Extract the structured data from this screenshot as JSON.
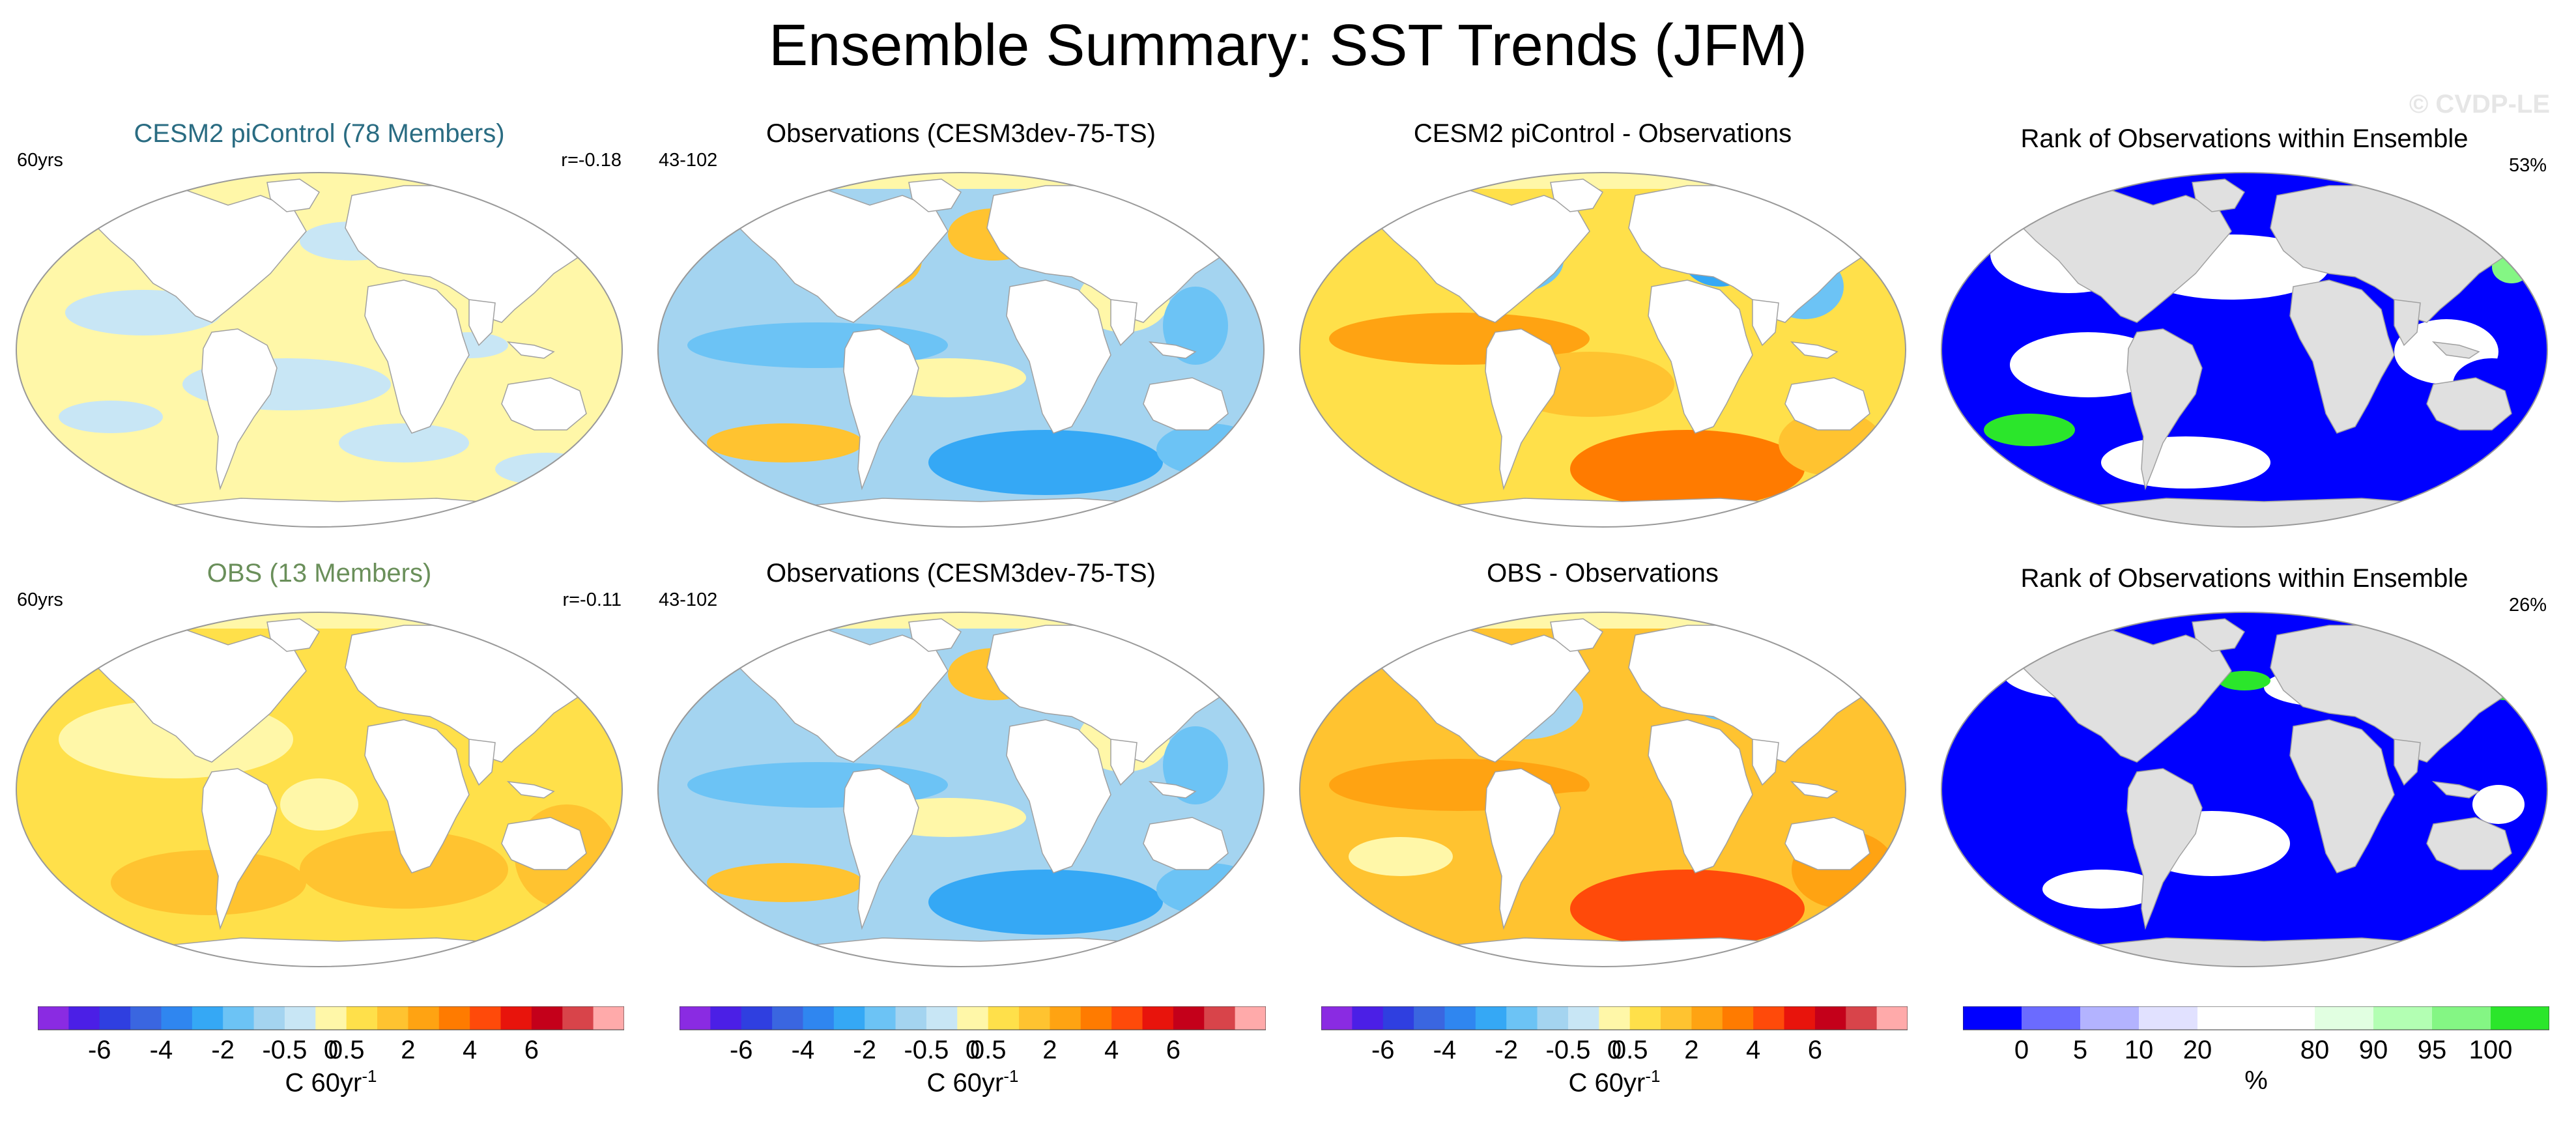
{
  "title": "Ensemble Summary: SST Trends (JFM)",
  "watermark": "© CVDP-LE",
  "colors": {
    "land": "#ffffff",
    "rank_land": "#e0e0e0",
    "outline": "#a0a0a0"
  },
  "rows": [
    {
      "panels": [
        {
          "title": "CESM2 piControl (78 Members)",
          "title_color": "#2a6c82",
          "left": "60yrs",
          "right": "r=-0.18",
          "kind": "ens"
        },
        {
          "title": "Observations (CESM3dev-75-TS)",
          "title_color": "#000000",
          "left": "43-102",
          "right": "",
          "kind": "obs"
        },
        {
          "title": "CESM2 piControl - Observations",
          "title_color": "#000000",
          "left": "",
          "right": "",
          "kind": "diff"
        },
        {
          "title": "Rank of Observations within Ensemble",
          "title_color": "#000000",
          "left": "",
          "right": "53%",
          "kind": "rank"
        }
      ]
    },
    {
      "panels": [
        {
          "title": "OBS (13 Members)",
          "title_color": "#6a8f5a",
          "left": "60yrs",
          "right": "r=-0.11",
          "kind": "ens2"
        },
        {
          "title": "Observations (CESM3dev-75-TS)",
          "title_color": "#000000",
          "left": "43-102",
          "right": "",
          "kind": "obs"
        },
        {
          "title": "OBS - Observations",
          "title_color": "#000000",
          "left": "",
          "right": "",
          "kind": "diff2"
        },
        {
          "title": "Rank of Observations within Ensemble",
          "title_color": "#000000",
          "left": "",
          "right": "26%",
          "kind": "rank2"
        }
      ]
    }
  ],
  "trend_colorbar": {
    "colors": [
      "#8a2be2",
      "#4b1fe6",
      "#2f3fe0",
      "#3a66e0",
      "#2f86f0",
      "#35a8f5",
      "#6cc3f5",
      "#a4d4f0",
      "#c8e6f5",
      "#fff7a8",
      "#ffe04a",
      "#ffc330",
      "#ffa312",
      "#ff7b00",
      "#ff4a0a",
      "#e8140c",
      "#c4001a",
      "#d8444a",
      "#ffaaaa"
    ],
    "tick_labels": [
      "-6",
      "-4",
      "-2",
      "-0.5",
      "0",
      "0.5",
      "2",
      "4",
      "6"
    ],
    "units": "C 60yr",
    "units_sup": "-1"
  },
  "rank_colorbar": {
    "colors": [
      "#0000ff",
      "#6b6bff",
      "#b3b3ff",
      "#e1e1ff",
      "#ffffff",
      "#ffffff",
      "#e1ffe1",
      "#b3ffb3",
      "#84f684",
      "#2be62b"
    ],
    "tick_labels": [
      "0",
      "5",
      "10",
      "20",
      "80",
      "90",
      "95",
      "100"
    ],
    "units": "%"
  }
}
